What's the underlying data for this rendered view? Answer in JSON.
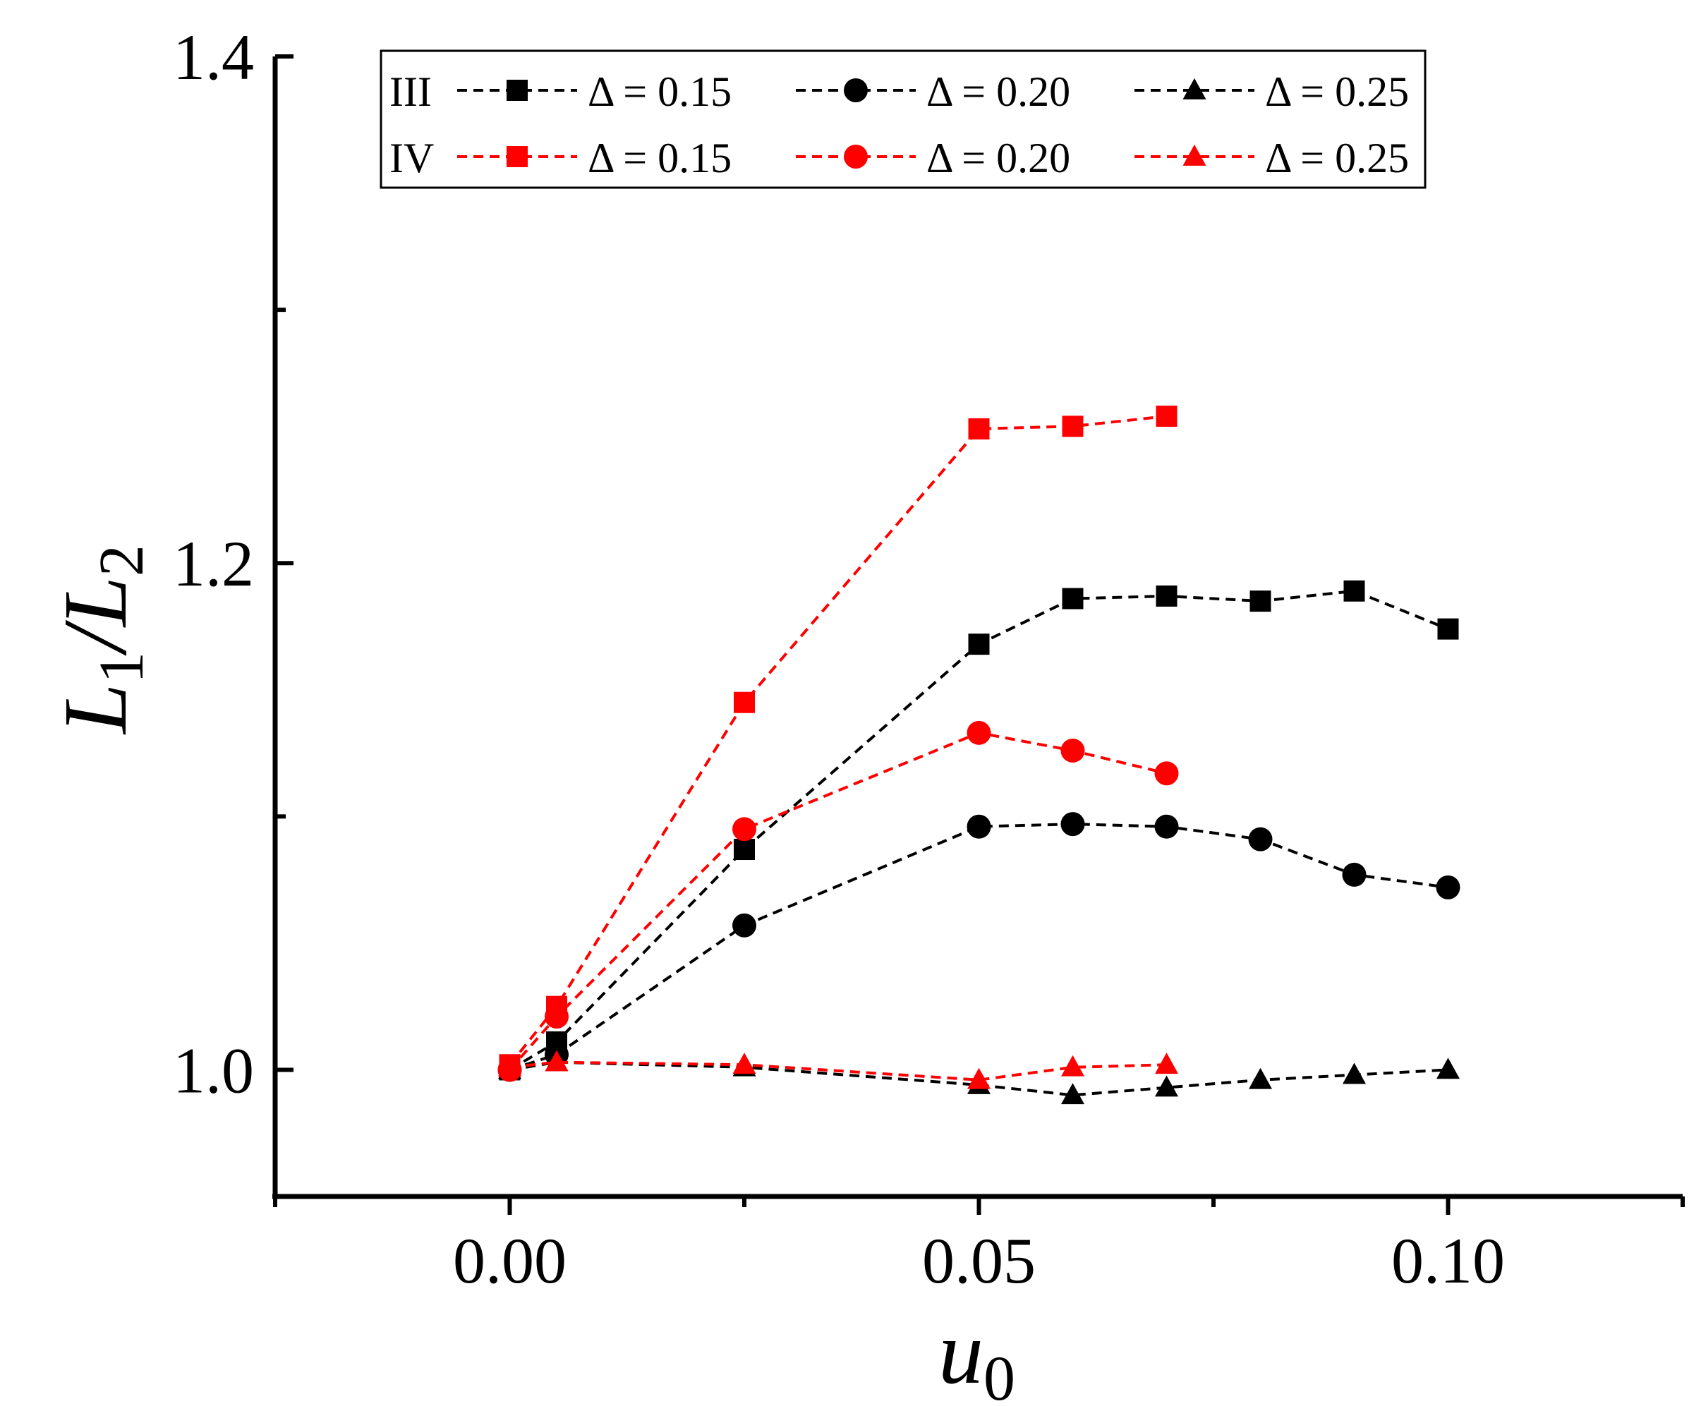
{
  "chart_data": {
    "type": "line",
    "xlabel": "u",
    "xlabel_sub": "0",
    "ylabel": "L",
    "ylabel_sub1": "1",
    "ylabel_mid": "/L",
    "ylabel_sub2": "2",
    "xlim": [
      -0.025,
      0.125
    ],
    "ylim": [
      0.95,
      1.4
    ],
    "x_ticks": [
      0.0,
      0.05,
      0.1
    ],
    "x_tick_labels": [
      "0.00",
      "0.05",
      "0.10"
    ],
    "y_ticks": [
      1.0,
      1.2,
      1.4
    ],
    "y_tick_labels": [
      "1.0",
      "1.2",
      "1.4"
    ],
    "legend_position": "top",
    "legend_groups": [
      "III",
      "IV"
    ],
    "series": [
      {
        "group": "III",
        "name": "Δ = 0.15",
        "color": "#000000",
        "marker": "square",
        "x": [
          0.0,
          0.005,
          0.025,
          0.05,
          0.06,
          0.07,
          0.08,
          0.09,
          0.1
        ],
        "y": [
          1.0,
          1.011,
          1.087,
          1.168,
          1.186,
          1.187,
          1.185,
          1.189,
          1.174
        ]
      },
      {
        "group": "III",
        "name": "Δ = 0.20",
        "color": "#000000",
        "marker": "circle",
        "x": [
          0.0,
          0.005,
          0.025,
          0.05,
          0.06,
          0.07,
          0.08,
          0.09,
          0.1
        ],
        "y": [
          1.0,
          1.006,
          1.057,
          1.096,
          1.097,
          1.096,
          1.091,
          1.077,
          1.072
        ]
      },
      {
        "group": "III",
        "name": "Δ = 0.25",
        "color": "#000000",
        "marker": "triangle",
        "x": [
          0.0,
          0.005,
          0.025,
          0.05,
          0.06,
          0.07,
          0.08,
          0.09,
          0.1
        ],
        "y": [
          1.0,
          1.003,
          1.001,
          0.994,
          0.99,
          0.993,
          0.996,
          0.998,
          1.0
        ]
      },
      {
        "group": "IV",
        "name": "Δ = 0.15",
        "color": "#ff0000",
        "marker": "square",
        "x": [
          0.0,
          0.005,
          0.025,
          0.05,
          0.06,
          0.07
        ],
        "y": [
          1.002,
          1.025,
          1.145,
          1.253,
          1.254,
          1.258
        ]
      },
      {
        "group": "IV",
        "name": "Δ = 0.20",
        "color": "#ff0000",
        "marker": "circle",
        "x": [
          0.0,
          0.005,
          0.025,
          0.05,
          0.06,
          0.07
        ],
        "y": [
          1.0,
          1.021,
          1.095,
          1.133,
          1.126,
          1.117
        ]
      },
      {
        "group": "IV",
        "name": "Δ = 0.25",
        "color": "#ff0000",
        "marker": "triangle",
        "x": [
          0.0,
          0.005,
          0.025,
          0.05,
          0.06,
          0.07
        ],
        "y": [
          1.001,
          1.003,
          1.002,
          0.996,
          1.001,
          1.002
        ]
      }
    ]
  }
}
